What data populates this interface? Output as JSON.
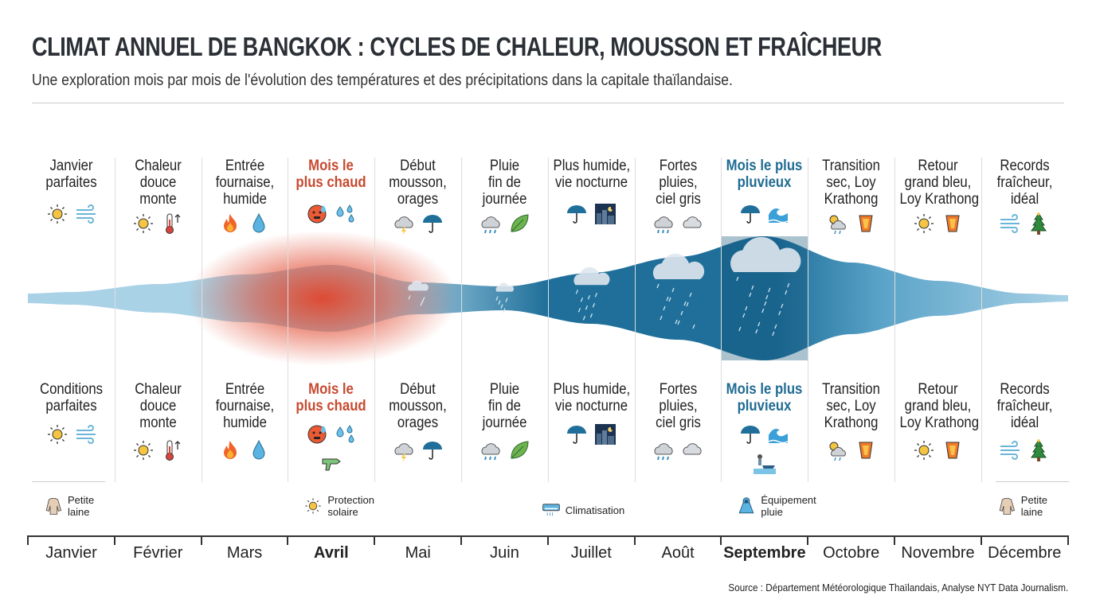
{
  "header": {
    "title": "CLIMAT ANNUEL DE BANGKOK : CYCLES DE CHALEUR, MOUSSON ET FRAÎCHEUR",
    "subtitle": "Une exploration mois par mois de l'évolution des températures et des précipitations dans la capitale thaïlandaise."
  },
  "colors": {
    "hot": "#c8492f",
    "wet": "#1f6b93",
    "band_light": "#a9d2e6",
    "band_dark": "#1f6f9a",
    "heat": "#e0442a"
  },
  "months": [
    {
      "name": "Janvier",
      "top": "Janvier parfaites",
      "bottom": "Conditions parfaites",
      "icons": [
        "sun-icon",
        "wind-icon"
      ],
      "bottom_icons": [
        "sun-icon",
        "wind-icon"
      ],
      "style": ""
    },
    {
      "name": "Février",
      "top": "Chaleur douce monte",
      "bottom": "Chaleur douce monte",
      "icons": [
        "sun-icon",
        "thermometer-up-icon"
      ],
      "bottom_icons": [
        "sun-icon",
        "thermometer-up-icon"
      ],
      "style": ""
    },
    {
      "name": "Mars",
      "top": "Entrée fournaise, humide",
      "bottom": "Entrée fournaise, humide",
      "icons": [
        "fire-icon",
        "drop-icon"
      ],
      "bottom_icons": [
        "fire-icon",
        "drop-icon"
      ],
      "style": ""
    },
    {
      "name": "Avril",
      "top": "Mois le plus chaud",
      "bottom": "Mois le plus chaud",
      "icons": [
        "hot-face-icon",
        "sweat-drops-icon"
      ],
      "bottom_icons": [
        "hot-face-icon",
        "sweat-drops-icon",
        "water-gun-icon"
      ],
      "style": "hot"
    },
    {
      "name": "Mai",
      "top": "Début mousson, orages",
      "bottom": "Début mousson, orages",
      "icons": [
        "storm-cloud-icon",
        "umbrella-icon"
      ],
      "bottom_icons": [
        "storm-cloud-icon",
        "umbrella-icon"
      ],
      "style": ""
    },
    {
      "name": "Juin",
      "top": "Pluie fin de journée",
      "bottom": "Pluie fin de journée",
      "icons": [
        "rain-cloud-icon",
        "leaf-icon"
      ],
      "bottom_icons": [
        "rain-cloud-icon",
        "leaf-icon"
      ],
      "style": ""
    },
    {
      "name": "Juillet",
      "top": "Plus humide, vie nocturne",
      "bottom": "Plus humide, vie nocturne",
      "icons": [
        "umbrella-icon",
        "night-city-icon"
      ],
      "bottom_icons": [
        "umbrella-icon",
        "night-city-icon"
      ],
      "style": ""
    },
    {
      "name": "Août",
      "top": "Fortes pluies, ciel gris",
      "bottom": "Fortes pluies, ciel gris",
      "icons": [
        "rain-cloud-icon",
        "cloud-icon"
      ],
      "bottom_icons": [
        "rain-cloud-icon",
        "cloud-icon"
      ],
      "style": ""
    },
    {
      "name": "Septembre",
      "top": "Mois le plus pluvieux",
      "bottom": "Mois le plus pluvieux",
      "icons": [
        "umbrella-icon",
        "wave-icon"
      ],
      "bottom_icons": [
        "umbrella-icon",
        "wave-icon",
        "flood-boat-icon"
      ],
      "style": "wet"
    },
    {
      "name": "Octobre",
      "top": "Transition sec, Loy Krathong",
      "bottom": "Transition sec, Loy Krathong",
      "icons": [
        "sun-cloud-rain-icon",
        "lantern-icon"
      ],
      "bottom_icons": [
        "sun-cloud-rain-icon",
        "lantern-icon"
      ],
      "style": ""
    },
    {
      "name": "Novembre",
      "top": "Retour grand bleu, Loy Krathong",
      "bottom": "Retour grand bleu, Loy Krathong",
      "icons": [
        "sun-icon",
        "lantern-icon"
      ],
      "bottom_icons": [
        "sun-icon",
        "lantern-icon"
      ],
      "style": ""
    },
    {
      "name": "Décembre",
      "top": "Records fraîcheur, idéal",
      "bottom": "Records fraîcheur, idéal",
      "icons": [
        "wind-icon",
        "tree-icon"
      ],
      "bottom_icons": [
        "wind-icon",
        "tree-icon"
      ],
      "style": ""
    }
  ],
  "top_lines": [
    [
      "Janvier",
      "parfaites"
    ],
    [
      "Chaleur",
      "douce",
      "monte"
    ],
    [
      "Entrée",
      "fournaise,",
      "humide"
    ],
    [
      "Mois le",
      "plus chaud"
    ],
    [
      "Début",
      "mousson,",
      "orages"
    ],
    [
      "Pluie",
      "fin de",
      "journée"
    ],
    [
      "Plus humide,",
      "vie nocturne"
    ],
    [
      "Fortes",
      "pluies,",
      "ciel gris"
    ],
    [
      "Mois le plus",
      "pluvieux"
    ],
    [
      "Transition",
      "sec, Loy",
      "Krathong"
    ],
    [
      "Retour",
      "grand bleu,",
      "Loy Krathong"
    ],
    [
      "Records",
      "fraîcheur,",
      "idéal"
    ]
  ],
  "bottom_lines": [
    [
      "Conditions",
      "parfaites"
    ],
    [
      "Chaleur",
      "douce",
      "monte"
    ],
    [
      "Entrée",
      "fournaise,",
      "humide"
    ],
    [
      "Mois le",
      "plus chaud"
    ],
    [
      "Début",
      "mousson,",
      "orages"
    ],
    [
      "Pluie",
      "fin de",
      "journée"
    ],
    [
      "Plus humide,",
      "vie nocturne"
    ],
    [
      "Fortes",
      "pluies,",
      "ciel gris"
    ],
    [
      "Mois le plus",
      "pluvieux"
    ],
    [
      "Transition",
      "sec, Loy",
      "Krathong"
    ],
    [
      "Retour",
      "grand bleu,",
      "Loy Krathong"
    ],
    [
      "Records",
      "fraîcheur,",
      "idéal"
    ]
  ],
  "recommendations": [
    {
      "month_index": 0,
      "icon": "sweater-icon",
      "lines": [
        "Petite",
        "laine"
      ]
    },
    {
      "month_index": 3,
      "icon": "sun-icon",
      "lines": [
        "Protection",
        "solaire"
      ]
    },
    {
      "month_index": 6,
      "icon": "air-conditioner-icon",
      "lines": [
        "Climatisation"
      ]
    },
    {
      "month_index": 8,
      "icon": "raincoat-icon",
      "lines": [
        "Équipement",
        "pluie"
      ]
    },
    {
      "month_index": 11,
      "icon": "sweater-icon",
      "lines": [
        "Petite",
        "laine"
      ]
    }
  ],
  "source": "Source : Département Météorologique Thaïlandais, Analyse NYT Data Journalism."
}
